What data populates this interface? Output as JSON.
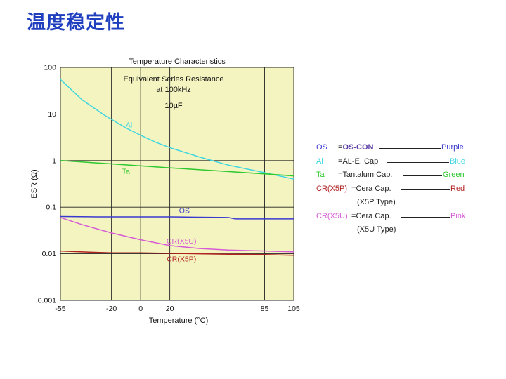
{
  "slide_title": "温度稳定性",
  "chart_data": {
    "type": "line",
    "title": "Temperature Characteristics",
    "annotations": [
      "Equivalent Series Resistance",
      "at 100kHz",
      "10µF"
    ],
    "xlabel": "Temperature (°C)",
    "ylabel": "ESR (Ω)",
    "xlim": [
      -55,
      105
    ],
    "ylim": [
      0.001,
      100
    ],
    "yscale": "log",
    "grid": true,
    "x_ticks": [
      -55,
      -20,
      0,
      20,
      85,
      105
    ],
    "x_tick_labels": [
      "-55",
      "-20",
      "0",
      "20",
      "85",
      "105"
    ],
    "y_ticks": [
      100,
      10,
      1,
      0.1,
      0.01,
      0.001
    ],
    "y_tick_labels": [
      "100",
      "10",
      "1",
      "0.1",
      "0.01",
      "0.001"
    ],
    "series": [
      {
        "name": "Al",
        "color": "#3fd6e0",
        "x": [
          -55,
          -40,
          -25,
          -10,
          0,
          10,
          20,
          40,
          60,
          85,
          105
        ],
        "y": [
          55,
          20,
          9.5,
          5,
          3.5,
          2.5,
          1.9,
          1.2,
          0.8,
          0.55,
          0.4
        ]
      },
      {
        "name": "Ta",
        "color": "#2ec82e",
        "x": [
          -55,
          -20,
          20,
          85,
          105
        ],
        "y": [
          1.0,
          0.85,
          0.7,
          0.52,
          0.47
        ]
      },
      {
        "name": "OS",
        "color": "#3a3ad0",
        "x": [
          -55,
          -30,
          0,
          20,
          40,
          60,
          65,
          85,
          105
        ],
        "y": [
          0.063,
          0.062,
          0.062,
          0.062,
          0.061,
          0.06,
          0.056,
          0.056,
          0.056
        ]
      },
      {
        "name": "CR(X5U)",
        "color": "#d65ad6",
        "x": [
          -55,
          -40,
          -20,
          0,
          20,
          40,
          60,
          85,
          105
        ],
        "y": [
          0.06,
          0.042,
          0.028,
          0.02,
          0.015,
          0.013,
          0.012,
          0.0115,
          0.011
        ]
      },
      {
        "name": "CR(X5P)",
        "color": "#b22222",
        "x": [
          -55,
          -40,
          -20,
          0,
          20,
          40,
          60,
          85,
          105
        ],
        "y": [
          0.0115,
          0.011,
          0.0105,
          0.0105,
          0.0102,
          0.01,
          0.0098,
          0.0096,
          0.0093
        ]
      }
    ]
  },
  "legend": [
    {
      "abbr": "OS",
      "abbr_color": "#3a3ad0",
      "desc_prefix": "=",
      "desc_strong": "OS-CON",
      "desc": "",
      "color_name": "Purple",
      "color_hex": "#3a3ad0",
      "sub": ""
    },
    {
      "abbr": "Al",
      "abbr_color": "#3fd6e0",
      "desc_prefix": "=",
      "desc_strong": "",
      "desc": "AL-E. Cap",
      "color_name": "Blue",
      "color_hex": "#3fd6e0",
      "sub": ""
    },
    {
      "abbr": "Ta",
      "abbr_color": "#2ec82e",
      "desc_prefix": "=",
      "desc_strong": "",
      "desc": "Tantalum Cap.",
      "color_name": "Green",
      "color_hex": "#2ec82e",
      "sub": ""
    },
    {
      "abbr": "CR(X5P)",
      "abbr_color": "#b22222",
      "desc_prefix": "=",
      "desc_strong": "",
      "desc": "Cera Cap.",
      "color_name": "Red",
      "color_hex": "#b22222",
      "sub": "(X5P Type)"
    },
    {
      "abbr": "CR(X5U)",
      "abbr_color": "#d65ad6",
      "desc_prefix": "=",
      "desc_strong": "",
      "desc": "Cera Cap.",
      "color_name": "Pink",
      "color_hex": "#d65ad6",
      "sub": "(X5U Type)"
    }
  ]
}
